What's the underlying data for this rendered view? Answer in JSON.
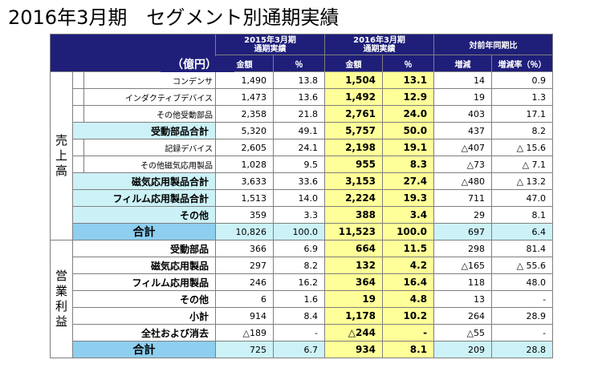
{
  "title": "2016年3月期　セグメント別通期実績",
  "header": {
    "unit": "（億円）",
    "fy2015": "2015年3月期",
    "fy2016": "2016年3月期",
    "full_year": "通期実績",
    "yoy": "対前年同期比",
    "amount": "金額",
    "pct": "％",
    "change": "増減",
    "change_rate": "増減率（％）"
  },
  "sales": {
    "section_label": [
      "売",
      "上",
      "高"
    ],
    "rows": [
      {
        "label": "コンデンサ",
        "a15": "1,490",
        "p15": "13.8",
        "a16": "1,504",
        "p16": "13.1",
        "chg": "14",
        "rate": "0.9",
        "type": "detail"
      },
      {
        "label": "インダクティブデバイス",
        "a15": "1,473",
        "p15": "13.6",
        "a16": "1,492",
        "p16": "12.9",
        "chg": "19",
        "rate": "1.3",
        "type": "detail"
      },
      {
        "label": "その他受動部品",
        "a15": "2,358",
        "p15": "21.8",
        "a16": "2,761",
        "p16": "24.0",
        "chg": "403",
        "rate": "17.1",
        "type": "detail"
      },
      {
        "label": "受動部品合計",
        "a15": "5,320",
        "p15": "49.1",
        "a16": "5,757",
        "p16": "50.0",
        "chg": "437",
        "rate": "8.2",
        "type": "subtotal"
      },
      {
        "label": "記録デバイス",
        "a15": "2,605",
        "p15": "24.1",
        "a16": "2,198",
        "p16": "19.1",
        "chg": "△407",
        "rate": "△ 15.6",
        "type": "detail"
      },
      {
        "label": "その他磁気応用製品",
        "a15": "1,028",
        "p15": "9.5",
        "a16": "955",
        "p16": "8.3",
        "chg": "△73",
        "rate": "△ 7.1",
        "type": "detail"
      },
      {
        "label": "磁気応用製品合計",
        "a15": "3,633",
        "p15": "33.6",
        "a16": "3,153",
        "p16": "27.4",
        "chg": "△480",
        "rate": "△ 13.2",
        "type": "subtotal"
      },
      {
        "label": "フィルム応用製品合計",
        "a15": "1,513",
        "p15": "14.0",
        "a16": "2,224",
        "p16": "19.3",
        "chg": "711",
        "rate": "47.0",
        "type": "subtotal"
      },
      {
        "label": "その他",
        "a15": "359",
        "p15": "3.3",
        "a16": "388",
        "p16": "3.4",
        "chg": "29",
        "rate": "8.1",
        "type": "subtotal"
      }
    ],
    "total": {
      "label": "合計",
      "a15": "10,826",
      "p15": "100.0",
      "a16": "11,523",
      "p16": "100.0",
      "chg": "697",
      "rate": "6.4"
    }
  },
  "op_income": {
    "section_label": [
      "営",
      "業",
      "利",
      "益"
    ],
    "rows": [
      {
        "label": "受動部品",
        "a15": "366",
        "p15": "6.9",
        "a16": "664",
        "p16": "11.5",
        "chg": "298",
        "rate": "81.4"
      },
      {
        "label": "磁気応用製品",
        "a15": "297",
        "p15": "8.2",
        "a16": "132",
        "p16": "4.2",
        "chg": "△165",
        "rate": "△ 55.6"
      },
      {
        "label": "フィルム応用製品",
        "a15": "246",
        "p15": "16.2",
        "a16": "364",
        "p16": "16.4",
        "chg": "118",
        "rate": "48.0"
      },
      {
        "label": "その他",
        "a15": "6",
        "p15": "1.6",
        "a16": "19",
        "p16": "4.8",
        "chg": "13",
        "rate": "-"
      },
      {
        "label": "小計",
        "a15": "914",
        "p15": "8.4",
        "a16": "1,178",
        "p16": "10.2",
        "chg": "264",
        "rate": "28.9"
      },
      {
        "label": "全社および消去",
        "a15": "△189",
        "p15": "-",
        "a16": "△244",
        "p16": "-",
        "chg": "△55",
        "rate": "-"
      }
    ],
    "total": {
      "label": "合計",
      "a15": "725",
      "p15": "6.7",
      "a16": "934",
      "p16": "8.1",
      "chg": "209",
      "rate": "28.8"
    }
  }
}
